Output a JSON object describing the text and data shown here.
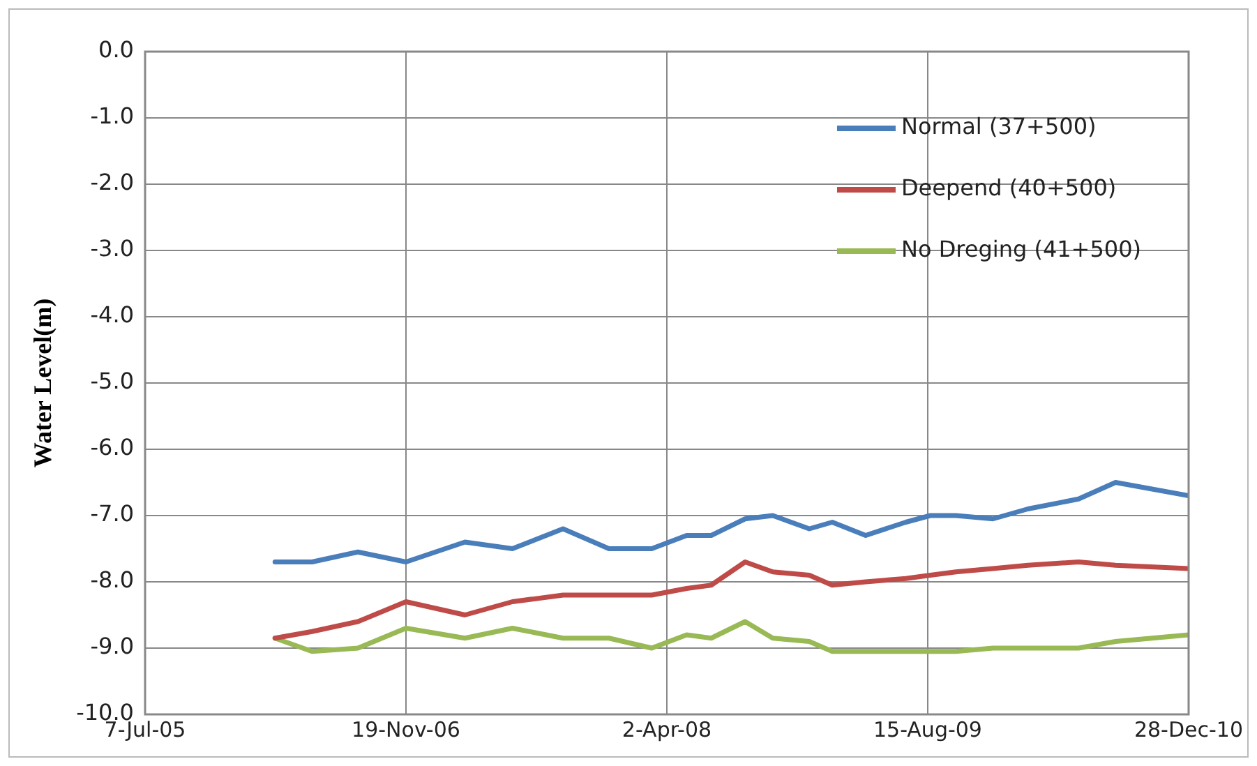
{
  "chart_data": {
    "type": "line",
    "ylabel": "Water Level(m)",
    "x": [
      "2006-03-13",
      "2006-05-23",
      "2006-08-19",
      "2006-11-19",
      "2007-03-12",
      "2007-06-11",
      "2007-09-16",
      "2007-12-13",
      "2008-03-04",
      "2008-05-10",
      "2008-06-26",
      "2008-08-30",
      "2008-10-22",
      "2008-12-31",
      "2009-02-13",
      "2009-04-18",
      "2009-07-04",
      "2009-08-20",
      "2009-10-08",
      "2009-12-18",
      "2010-02-23",
      "2010-05-31",
      "2010-08-10",
      "2010-12-28"
    ],
    "series": [
      {
        "name": "Normal (37+500)",
        "color": "#4a7ebb",
        "values": [
          -7.7,
          -7.7,
          -7.55,
          -7.7,
          -7.4,
          -7.5,
          -7.2,
          -7.5,
          -7.5,
          -7.3,
          -7.3,
          -7.05,
          -7.0,
          -7.2,
          -7.1,
          -7.3,
          -7.1,
          -7.0,
          -7.0,
          -7.05,
          -6.9,
          -6.75,
          -6.5,
          -6.7
        ]
      },
      {
        "name": "Deepend (40+500)",
        "color": "#be4b48",
        "values": [
          -8.85,
          -8.75,
          -8.6,
          -8.3,
          -8.5,
          -8.3,
          -8.2,
          -8.2,
          -8.2,
          -8.1,
          -8.05,
          -7.7,
          -7.85,
          -7.9,
          -8.05,
          -8.0,
          -7.95,
          -7.9,
          -7.85,
          -7.8,
          -7.75,
          -7.7,
          -7.75,
          -7.8
        ]
      },
      {
        "name": "No Dreging (41+500)",
        "color": "#98b954",
        "values": [
          -8.85,
          -9.05,
          -9.0,
          -8.7,
          -8.85,
          -8.7,
          -8.85,
          -8.85,
          -9.0,
          -8.8,
          -8.85,
          -8.6,
          -8.85,
          -8.9,
          -9.05,
          -9.05,
          -9.05,
          -9.05,
          -9.05,
          -9.0,
          -9.0,
          -9.0,
          -8.9,
          -8.8
        ]
      }
    ],
    "xlim": [
      "2005-07-07",
      "2010-12-28"
    ],
    "xticks": [
      {
        "value": "2005-07-07",
        "label": "7-Jul-05"
      },
      {
        "value": "2006-11-19",
        "label": "19-Nov-06"
      },
      {
        "value": "2008-04-02",
        "label": "2-Apr-08"
      },
      {
        "value": "2009-08-15",
        "label": "15-Aug-09"
      },
      {
        "value": "2010-12-28",
        "label": "28-Dec-10"
      }
    ],
    "ylim": [
      -10,
      0
    ],
    "yticks": [
      {
        "value": 0,
        "label": "0.0"
      },
      {
        "value": -1,
        "label": "-1.0"
      },
      {
        "value": -2,
        "label": "-2.0"
      },
      {
        "value": -3,
        "label": "-3.0"
      },
      {
        "value": -4,
        "label": "-4.0"
      },
      {
        "value": -5,
        "label": "-5.0"
      },
      {
        "value": -6,
        "label": "-6.0"
      },
      {
        "value": -7,
        "label": "-7.0"
      },
      {
        "value": -8,
        "label": "-8.0"
      },
      {
        "value": -9,
        "label": "-9.0"
      },
      {
        "value": -10,
        "label": "-10.0"
      }
    ],
    "grid": true,
    "legend": "top right",
    "marker": "none",
    "line_style": "solid"
  }
}
